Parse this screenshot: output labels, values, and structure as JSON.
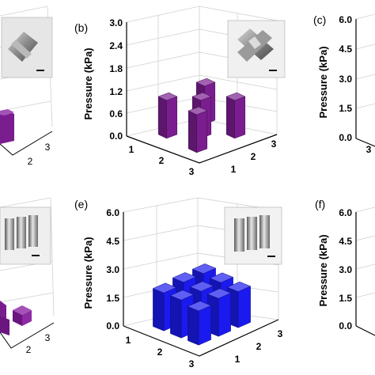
{
  "figure": {
    "panels": [
      {
        "id": "a",
        "label": "",
        "ylabel": "",
        "yticks": [],
        "xticks": [
          "2",
          "3"
        ],
        "zticks": [],
        "bar_color": "#7a1d8f"
      },
      {
        "id": "b",
        "label": "(b)",
        "ylabel": "Pressure (kPa)",
        "yticks": [
          "0.0",
          "0.6",
          "1.2",
          "1.8",
          "2.4",
          "3.0"
        ],
        "xticks": [
          "1",
          "2",
          "3"
        ],
        "zticks": [
          "1",
          "2",
          "3"
        ],
        "bar_color": "#7a1d8f"
      },
      {
        "id": "c",
        "label": "(c)",
        "ylabel": "Pressure (kPa)",
        "yticks": [
          "0.0",
          "1.5",
          "3.0",
          "4.5",
          "6.0"
        ],
        "xticks": [
          "3"
        ],
        "zticks": [],
        "bar_color": "#7a1d8f"
      },
      {
        "id": "d",
        "label": "",
        "ylabel": "",
        "yticks": [],
        "xticks": [
          "2",
          "3"
        ],
        "zticks": [],
        "bar_color": "#7a1d8f"
      },
      {
        "id": "e",
        "label": "(e)",
        "ylabel": "Pressure (kPa)",
        "yticks": [
          "0.0",
          "1.5",
          "3.0",
          "4.5",
          "6.0"
        ],
        "xticks": [
          "1",
          "2",
          "3"
        ],
        "zticks": [
          "1",
          "2",
          "3"
        ],
        "bar_color": "#1a1aee"
      },
      {
        "id": "f",
        "label": "(f)",
        "ylabel": "Pressure (kPa)",
        "yticks": [
          "0.0",
          "1.5",
          "3.0",
          "4.5",
          "6.0"
        ],
        "xticks": [],
        "zticks": [],
        "bar_color": "#7a1d8f"
      }
    ]
  },
  "chart_data": [
    {
      "type": "bar",
      "panel": "b",
      "title": "",
      "ylabel": "Pressure (kPa)",
      "ylim": [
        0,
        3.0
      ],
      "x_categories": [
        "1",
        "2",
        "3"
      ],
      "z_categories": [
        "1",
        "2",
        "3"
      ],
      "bars": [
        {
          "x": "1",
          "z": "1",
          "value": 1.0
        },
        {
          "x": "1",
          "z": "3",
          "value": 1.0
        },
        {
          "x": "2",
          "z": "2",
          "value": 1.0
        },
        {
          "x": "3",
          "z": "1",
          "value": 1.0
        },
        {
          "x": "3",
          "z": "3",
          "value": 1.0
        }
      ],
      "grid": true
    },
    {
      "type": "bar",
      "panel": "e",
      "title": "",
      "ylabel": "Pressure (kPa)",
      "ylim": [
        0,
        6.0
      ],
      "x_categories": [
        "1",
        "2",
        "3"
      ],
      "z_categories": [
        "1",
        "2",
        "3"
      ],
      "bars": [
        {
          "x": "1",
          "z": "1",
          "value": 2.0
        },
        {
          "x": "1",
          "z": "2",
          "value": 2.1
        },
        {
          "x": "1",
          "z": "3",
          "value": 2.1
        },
        {
          "x": "2",
          "z": "1",
          "value": 2.0
        },
        {
          "x": "2",
          "z": "2",
          "value": 2.0
        },
        {
          "x": "2",
          "z": "3",
          "value": 2.0
        },
        {
          "x": "3",
          "z": "1",
          "value": 1.8
        },
        {
          "x": "3",
          "z": "2",
          "value": 2.0
        },
        {
          "x": "3",
          "z": "3",
          "value": 1.9
        }
      ],
      "grid": true
    }
  ]
}
